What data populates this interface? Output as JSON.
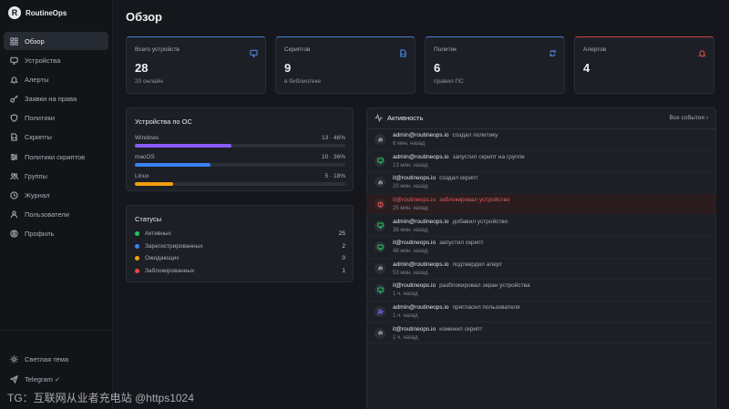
{
  "brand": {
    "name": "RoutineOps",
    "logo_letter": "R"
  },
  "sidebar": {
    "items": [
      {
        "label": "Обзор",
        "icon": "grid-icon",
        "active": true
      },
      {
        "label": "Устройства",
        "icon": "monitor-icon"
      },
      {
        "label": "Алерты",
        "icon": "bell-icon"
      },
      {
        "label": "Заявки на права",
        "icon": "key-icon"
      },
      {
        "label": "Политики",
        "icon": "shield-icon"
      },
      {
        "label": "Скрипты",
        "icon": "file-code-icon"
      },
      {
        "label": "Политики скриптов",
        "icon": "sliders-icon"
      },
      {
        "label": "Группы",
        "icon": "users-icon"
      },
      {
        "label": "Журнал",
        "icon": "clock-icon"
      },
      {
        "label": "Пользователи",
        "icon": "user-group-icon"
      },
      {
        "label": "Профиль",
        "icon": "user-circle-icon"
      }
    ],
    "bottom": [
      {
        "label": "Светлая тема",
        "icon": "sun-icon"
      },
      {
        "label": "Telegram ✓",
        "icon": "send-icon"
      }
    ]
  },
  "page_title": "Обзор",
  "stats": [
    {
      "label": "Всего устройств",
      "value": "28",
      "sub": "20 онлайн",
      "icon": "monitor-icon",
      "accent": "#4a7fd4"
    },
    {
      "label": "Скриптов",
      "value": "9",
      "sub": "в библиотеке",
      "icon": "file-code-icon",
      "accent": "#4a7fd4"
    },
    {
      "label": "Политик",
      "value": "6",
      "sub": "правил ПС",
      "icon": "refresh-icon",
      "accent": "#4a7fd4"
    },
    {
      "label": "Алертов",
      "value": "4",
      "sub": "",
      "icon": "bell-icon",
      "accent": "#c94747"
    }
  ],
  "os_panel": {
    "title": "Устройства по ОС",
    "rows": [
      {
        "name": "Windows",
        "count_text": "13 · 46%",
        "percent": 46,
        "color": "#8b5cf6"
      },
      {
        "name": "macOS",
        "count_text": "10 · 36%",
        "percent": 36,
        "color": "#3b82f6"
      },
      {
        "name": "Linux",
        "count_text": "5 · 18%",
        "percent": 18,
        "color": "#f59e0b"
      }
    ]
  },
  "status_panel": {
    "title": "Статусы",
    "rows": [
      {
        "label": "Активных",
        "count": "25",
        "color": "#22c55e"
      },
      {
        "label": "Зарегистрированных",
        "count": "2",
        "color": "#3b82f6"
      },
      {
        "label": "Ожидающих",
        "count": "0",
        "color": "#f59e0b"
      },
      {
        "label": "Заблокированных",
        "count": "1",
        "color": "#ef4444"
      }
    ]
  },
  "activity": {
    "title": "Активность",
    "all_link": "Все события",
    "items": [
      {
        "user": "admin@routineops.io",
        "action": "создал политику",
        "time": "6 мин. назад",
        "icon": "fingerprint-icon",
        "color": "#9aa0ab"
      },
      {
        "user": "admin@routineops.io",
        "action": "запустил скрипт на группе",
        "time": "13 мин. назад",
        "icon": "monitor-icon",
        "color": "#22c55e"
      },
      {
        "user": "it@routineops.io",
        "action": "создал скрипт",
        "time": "20 мин. назад",
        "icon": "fingerprint-icon",
        "color": "#9aa0ab"
      },
      {
        "user": "it@routineops.io",
        "action": "заблокировал устройство",
        "time": "25 мин. назад",
        "icon": "block-icon",
        "color": "#e05d5d",
        "danger": true
      },
      {
        "user": "admin@routineops.io",
        "action": "добавил устройство",
        "time": "36 мин. назад",
        "icon": "monitor-icon",
        "color": "#22c55e"
      },
      {
        "user": "it@routineops.io",
        "action": "запустил скрипт",
        "time": "48 мин. назад",
        "icon": "monitor-icon",
        "color": "#22c55e"
      },
      {
        "user": "admin@routineops.io",
        "action": "подтвердил алерт",
        "time": "53 мин. назад",
        "icon": "fingerprint-icon",
        "color": "#9aa0ab"
      },
      {
        "user": "it@routineops.io",
        "action": "разблокировал экран устройства",
        "time": "1 ч. назад",
        "icon": "monitor-icon",
        "color": "#22c55e"
      },
      {
        "user": "admin@routineops.io",
        "action": "пригласил пользователя",
        "time": "1 ч. назад",
        "icon": "user-plus-icon",
        "color": "#8b5cf6"
      },
      {
        "user": "it@routineops.io",
        "action": "изменил скрипт",
        "time": "1 ч. назад",
        "icon": "fingerprint-icon",
        "color": "#9aa0ab"
      }
    ]
  },
  "watermark": "TG：互联网从业者充电站 @https1024"
}
